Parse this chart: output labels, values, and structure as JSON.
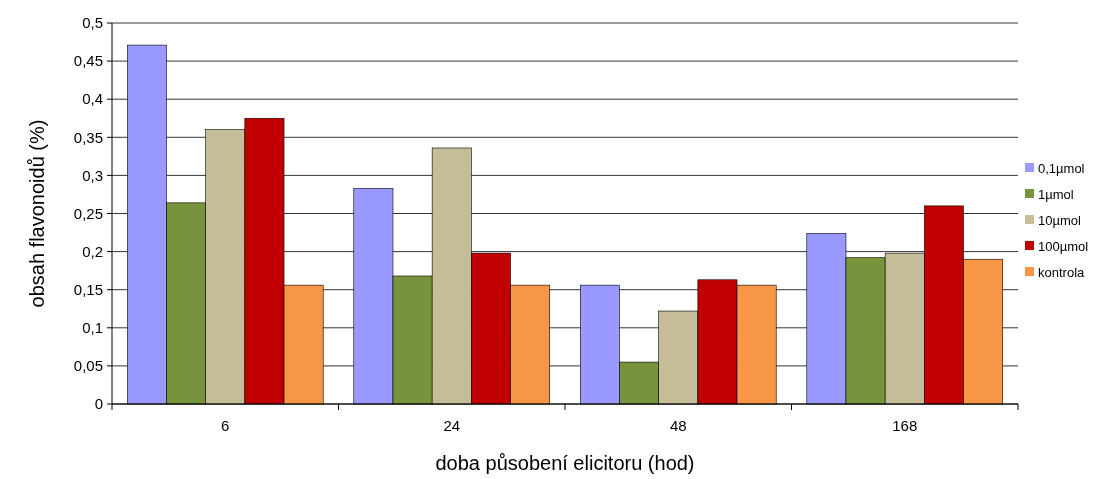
{
  "chart_data": {
    "type": "bar",
    "xlabel": "doba působení elicitoru (hod)",
    "ylabel": "obsah flavonoidů (%)",
    "categories": [
      "6",
      "24",
      "48",
      "168"
    ],
    "series": [
      {
        "name": "0,1µmol",
        "color": "#9999ff",
        "values": [
          0.471,
          0.283,
          0.156,
          0.224
        ]
      },
      {
        "name": "1µmol",
        "color": "#77933c",
        "values": [
          0.264,
          0.168,
          0.055,
          0.192
        ]
      },
      {
        "name": "10µmol",
        "color": "#c4bd97",
        "values": [
          0.36,
          0.336,
          0.122,
          0.198
        ]
      },
      {
        "name": "100µmol",
        "color": "#c00000",
        "values": [
          0.375,
          0.198,
          0.163,
          0.26
        ]
      },
      {
        "name": "kontrola",
        "color": "#f79646",
        "values": [
          0.156,
          0.156,
          0.156,
          0.19
        ]
      }
    ],
    "ylim": [
      0,
      0.5
    ],
    "yticks": [
      0,
      {
        "value": 0.05,
        "label": "0,05"
      },
      {
        "value": 0.1,
        "label": "0,1"
      },
      {
        "value": 0.15,
        "label": "0,15"
      },
      {
        "value": 0.2,
        "label": "0,2"
      },
      {
        "value": 0.25,
        "label": "0,25"
      },
      {
        "value": 0.3,
        "label": "0,3"
      },
      {
        "value": 0.35,
        "label": "0,35"
      },
      {
        "value": 0.4,
        "label": "0,4"
      },
      {
        "value": 0.45,
        "label": "0,45"
      },
      {
        "value": 0.5,
        "label": "0,5"
      }
    ],
    "grid": "y",
    "legend": "right"
  }
}
